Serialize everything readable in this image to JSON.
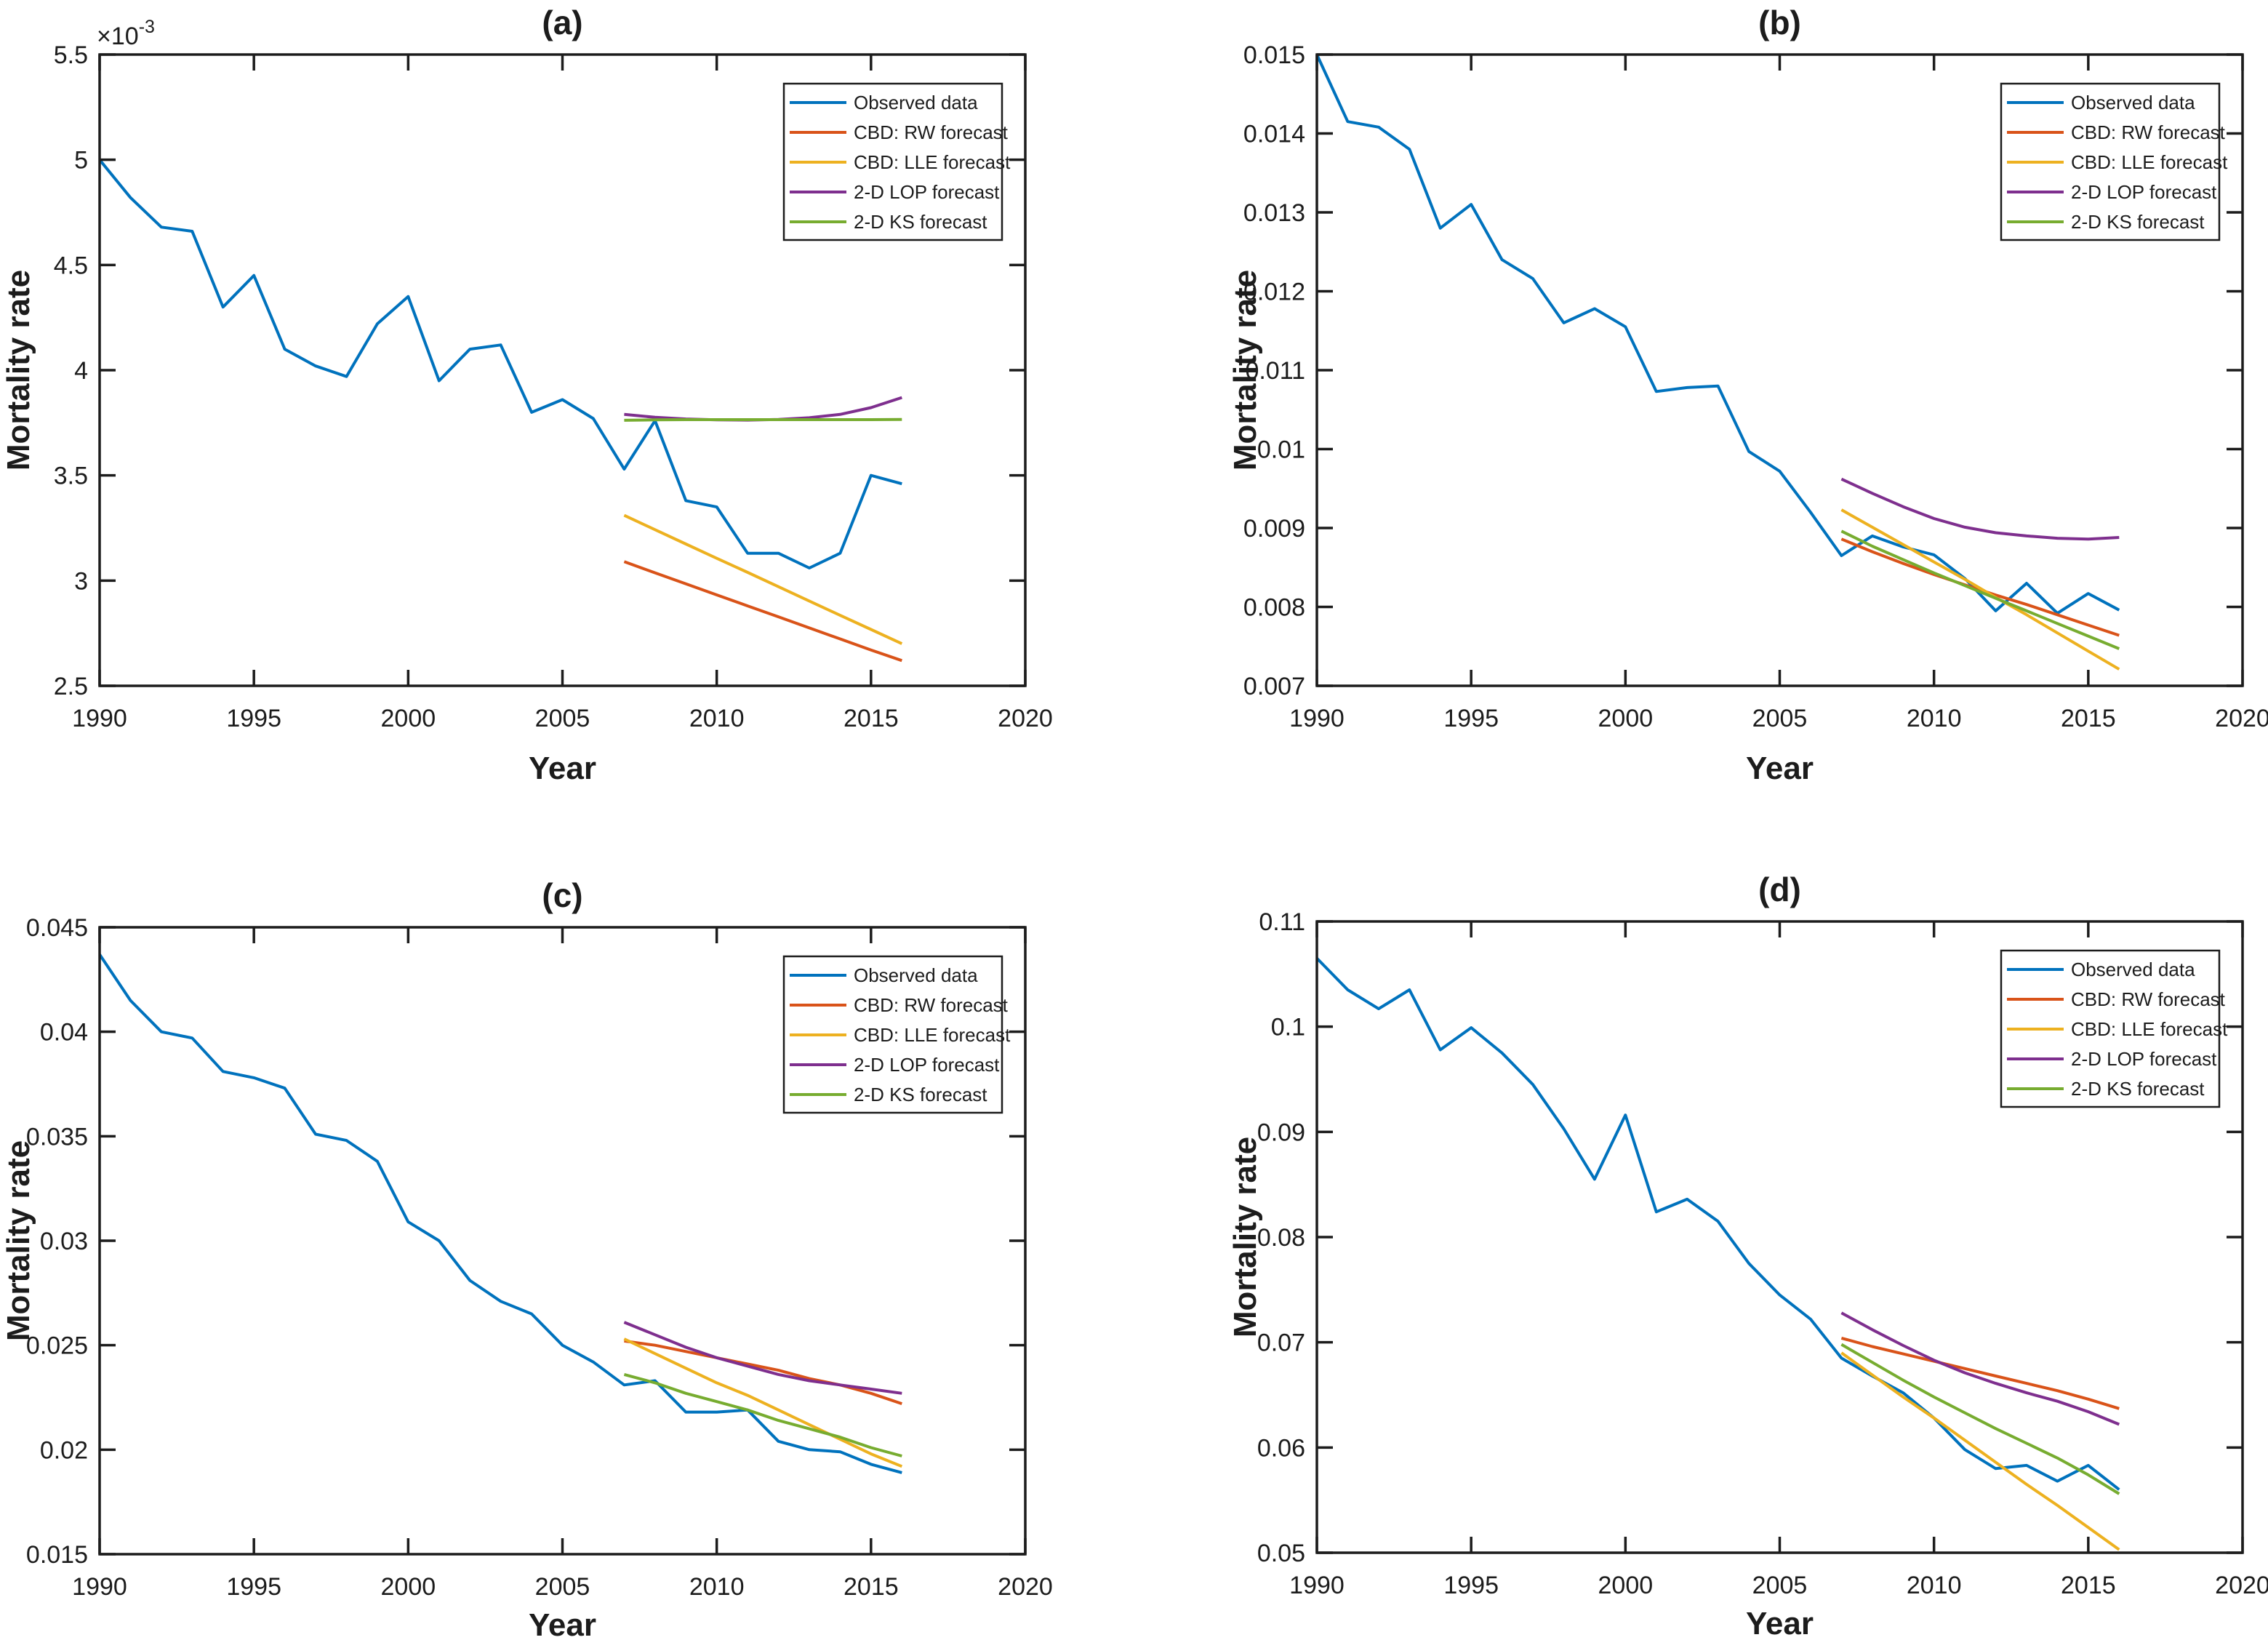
{
  "figure": {
    "background": "#ffffff",
    "axis_color": "#1c1c1c",
    "text_color": "#1c1c1c",
    "series_colors": {
      "observed": "#0072BD",
      "rw": "#D95319",
      "lle": "#EDB120",
      "lop": "#7E2F8E",
      "ks": "#77AC30"
    },
    "legend_labels": [
      "Observed data",
      "CBD: RW forecast",
      "CBD: LLE forecast",
      "2-D LOP forecast",
      "2-D KS forecast"
    ]
  },
  "chart_data": [
    {
      "type": "line",
      "title": "(a)",
      "xlabel": "Year",
      "ylabel": "Mortality rate",
      "y_exponent_base": "×10",
      "y_exponent_power": "-3",
      "grid": false,
      "legend_position": "top-right",
      "xlim": [
        1990,
        2020
      ],
      "ylim": [
        0.0025,
        0.0055
      ],
      "x_tick_values": [
        1990,
        1995,
        2000,
        2005,
        2010,
        2015,
        2020
      ],
      "x_tick_labels": [
        "1990",
        "1995",
        "2000",
        "2005",
        "2010",
        "2015",
        "2020"
      ],
      "y_tick_values": [
        0.0025,
        0.003,
        0.0035,
        0.004,
        0.0045,
        0.005,
        0.0055
      ],
      "y_tick_labels": [
        "2.5",
        "3",
        "3.5",
        "4",
        "4.5",
        "5",
        "5.5"
      ],
      "x_observed": [
        1990,
        1991,
        1992,
        1993,
        1994,
        1995,
        1996,
        1997,
        1998,
        1999,
        2000,
        2001,
        2002,
        2003,
        2004,
        2005,
        2006,
        2007,
        2008,
        2009,
        2010,
        2011,
        2012,
        2013,
        2014,
        2015,
        2016
      ],
      "x_forecast": [
        2007,
        2008,
        2009,
        2010,
        2011,
        2012,
        2013,
        2014,
        2015,
        2016
      ],
      "series": [
        {
          "key": "observed",
          "name": "Observed data",
          "x": "observed",
          "y": [
            0.005,
            0.00482,
            0.00468,
            0.00466,
            0.0043,
            0.00445,
            0.0041,
            0.00402,
            0.00397,
            0.00422,
            0.00435,
            0.00395,
            0.0041,
            0.00412,
            0.0038,
            0.00386,
            0.00377,
            0.00353,
            0.00376,
            0.00338,
            0.00335,
            0.00313,
            0.00313,
            0.00306,
            0.00313,
            0.0035,
            0.00346
          ]
        },
        {
          "key": "rw",
          "name": "CBD: RW forecast",
          "x": "forecast",
          "y": [
            0.00309,
            0.003037,
            0.002985,
            0.002932,
            0.00288,
            0.002828,
            0.002775,
            0.002723,
            0.00267,
            0.00262
          ]
        },
        {
          "key": "lle",
          "name": "CBD: LLE forecast",
          "x": "forecast",
          "y": [
            0.00331,
            0.003242,
            0.003174,
            0.003106,
            0.003039,
            0.002971,
            0.002903,
            0.002835,
            0.002768,
            0.0027
          ]
        },
        {
          "key": "lop",
          "name": "2-D LOP forecast",
          "x": "forecast",
          "y": [
            0.00379,
            0.003776,
            0.003768,
            0.003764,
            0.003763,
            0.003766,
            0.003774,
            0.00379,
            0.003822,
            0.00387
          ]
        },
        {
          "key": "ks",
          "name": "2-D KS forecast",
          "x": "forecast",
          "y": [
            0.003762,
            0.003764,
            0.003765,
            0.003765,
            0.003765,
            0.003765,
            0.003765,
            0.003765,
            0.003765,
            0.003766
          ]
        }
      ]
    },
    {
      "type": "line",
      "title": "(b)",
      "xlabel": "Year",
      "ylabel": "Mortality rate",
      "y_exponent_base": "",
      "y_exponent_power": "",
      "grid": false,
      "legend_position": "top-right",
      "xlim": [
        1990,
        2020
      ],
      "ylim": [
        0.007,
        0.015
      ],
      "x_tick_values": [
        1990,
        1995,
        2000,
        2005,
        2010,
        2015,
        2020
      ],
      "x_tick_labels": [
        "1990",
        "1995",
        "2000",
        "2005",
        "2010",
        "2015",
        "2020"
      ],
      "y_tick_values": [
        0.007,
        0.008,
        0.009,
        0.01,
        0.011,
        0.012,
        0.013,
        0.014,
        0.015
      ],
      "y_tick_labels": [
        "0.007",
        "0.008",
        "0.009",
        "0.01",
        "0.011",
        "0.012",
        "0.013",
        "0.014",
        "0.015"
      ],
      "x_observed": [
        1990,
        1991,
        1992,
        1993,
        1994,
        1995,
        1996,
        1997,
        1998,
        1999,
        2000,
        2001,
        2002,
        2003,
        2004,
        2005,
        2006,
        2007,
        2008,
        2009,
        2010,
        2011,
        2012,
        2013,
        2014,
        2015,
        2016
      ],
      "x_forecast": [
        2007,
        2008,
        2009,
        2010,
        2011,
        2012,
        2013,
        2014,
        2015,
        2016
      ],
      "series": [
        {
          "key": "observed",
          "name": "Observed data",
          "x": "observed",
          "y": [
            0.015,
            0.01415,
            0.01408,
            0.0138,
            0.0128,
            0.0131,
            0.0124,
            0.01216,
            0.0116,
            0.01178,
            0.01155,
            0.01073,
            0.01078,
            0.0108,
            0.00997,
            0.00972,
            0.0092,
            0.00865,
            0.0089,
            0.00876,
            0.00866,
            0.00836,
            0.00795,
            0.0083,
            0.00792,
            0.00817,
            0.00796
          ]
        },
        {
          "key": "rw",
          "name": "CBD: RW forecast",
          "x": "forecast",
          "y": [
            0.00886,
            0.0087,
            0.00855,
            0.00841,
            0.00828,
            0.00815,
            0.00803,
            0.0079,
            0.00777,
            0.00764
          ]
        },
        {
          "key": "lle",
          "name": "CBD: LLE forecast",
          "x": "forecast",
          "y": [
            0.00923,
            0.00901,
            0.00879,
            0.00857,
            0.00835,
            0.00812,
            0.0079,
            0.00767,
            0.00744,
            0.00721
          ]
        },
        {
          "key": "lop",
          "name": "2-D LOP forecast",
          "x": "forecast",
          "y": [
            0.00962,
            0.00944,
            0.00927,
            0.00912,
            0.00901,
            0.00894,
            0.0089,
            0.00887,
            0.00886,
            0.00888
          ]
        },
        {
          "key": "ks",
          "name": "2-D KS forecast",
          "x": "forecast",
          "y": [
            0.00896,
            0.00877,
            0.0086,
            0.00843,
            0.00827,
            0.00811,
            0.00795,
            0.00779,
            0.00763,
            0.00747
          ]
        }
      ]
    },
    {
      "type": "line",
      "title": "(c)",
      "xlabel": "Year",
      "ylabel": "Mortality rate",
      "y_exponent_base": "",
      "y_exponent_power": "",
      "grid": false,
      "legend_position": "top-right",
      "xlim": [
        1990,
        2020
      ],
      "ylim": [
        0.015,
        0.045
      ],
      "x_tick_values": [
        1990,
        1995,
        2000,
        2005,
        2010,
        2015,
        2020
      ],
      "x_tick_labels": [
        "1990",
        "1995",
        "2000",
        "2005",
        "2010",
        "2015",
        "2020"
      ],
      "y_tick_values": [
        0.015,
        0.02,
        0.025,
        0.03,
        0.035,
        0.04,
        0.045
      ],
      "y_tick_labels": [
        "0.015",
        "0.02",
        "0.025",
        "0.03",
        "0.035",
        "0.04",
        "0.045"
      ],
      "x_observed": [
        1990,
        1991,
        1992,
        1993,
        1994,
        1995,
        1996,
        1997,
        1998,
        1999,
        2000,
        2001,
        2002,
        2003,
        2004,
        2005,
        2006,
        2007,
        2008,
        2009,
        2010,
        2011,
        2012,
        2013,
        2014,
        2015,
        2016
      ],
      "x_forecast": [
        2007,
        2008,
        2009,
        2010,
        2011,
        2012,
        2013,
        2014,
        2015,
        2016
      ],
      "series": [
        {
          "key": "observed",
          "name": "Observed data",
          "x": "observed",
          "y": [
            0.0437,
            0.0415,
            0.04,
            0.0397,
            0.0381,
            0.0378,
            0.0373,
            0.0351,
            0.0348,
            0.0338,
            0.0309,
            0.03,
            0.0281,
            0.0271,
            0.0265,
            0.025,
            0.0242,
            0.0231,
            0.0233,
            0.0218,
            0.0218,
            0.0219,
            0.0204,
            0.02,
            0.0199,
            0.0193,
            0.0189
          ]
        },
        {
          "key": "rw",
          "name": "CBD: RW forecast",
          "x": "forecast",
          "y": [
            0.0252,
            0.025,
            0.0247,
            0.0244,
            0.0241,
            0.0238,
            0.0234,
            0.0231,
            0.0227,
            0.0222
          ]
        },
        {
          "key": "lle",
          "name": "CBD: LLE forecast",
          "x": "forecast",
          "y": [
            0.0253,
            0.0246,
            0.0239,
            0.0232,
            0.0226,
            0.0219,
            0.0212,
            0.0205,
            0.0198,
            0.0192
          ]
        },
        {
          "key": "lop",
          "name": "2-D LOP forecast",
          "x": "forecast",
          "y": [
            0.0261,
            0.0255,
            0.0249,
            0.0244,
            0.024,
            0.0236,
            0.0233,
            0.0231,
            0.0229,
            0.0227
          ]
        },
        {
          "key": "ks",
          "name": "2-D KS forecast",
          "x": "forecast",
          "y": [
            0.0236,
            0.0232,
            0.0227,
            0.0223,
            0.0219,
            0.0214,
            0.021,
            0.0206,
            0.0201,
            0.0197
          ]
        }
      ]
    },
    {
      "type": "line",
      "title": "(d)",
      "xlabel": "Year",
      "ylabel": "Mortality rate",
      "y_exponent_base": "",
      "y_exponent_power": "",
      "grid": false,
      "legend_position": "top-right",
      "xlim": [
        1990,
        2020
      ],
      "ylim": [
        0.05,
        0.11
      ],
      "x_tick_values": [
        1990,
        1995,
        2000,
        2005,
        2010,
        2015,
        2020
      ],
      "x_tick_labels": [
        "1990",
        "1995",
        "2000",
        "2005",
        "2010",
        "2015",
        "2020"
      ],
      "y_tick_values": [
        0.05,
        0.06,
        0.07,
        0.08,
        0.09,
        0.1,
        0.11
      ],
      "y_tick_labels": [
        "0.05",
        "0.06",
        "0.07",
        "0.08",
        "0.09",
        "0.1",
        "0.11"
      ],
      "x_observed": [
        1990,
        1991,
        1992,
        1993,
        1994,
        1995,
        1996,
        1997,
        1998,
        1999,
        2000,
        2001,
        2002,
        2003,
        2004,
        2005,
        2006,
        2007,
        2008,
        2009,
        2010,
        2011,
        2012,
        2013,
        2014,
        2015,
        2016
      ],
      "x_forecast": [
        2007,
        2008,
        2009,
        2010,
        2011,
        2012,
        2013,
        2014,
        2015,
        2016
      ],
      "series": [
        {
          "key": "observed",
          "name": "Observed data",
          "x": "observed",
          "y": [
            0.1065,
            0.1035,
            0.1017,
            0.1035,
            0.0978,
            0.0999,
            0.0975,
            0.0945,
            0.0903,
            0.0855,
            0.0916,
            0.0824,
            0.0836,
            0.0815,
            0.0775,
            0.0745,
            0.0722,
            0.0685,
            0.0668,
            0.0652,
            0.0628,
            0.0598,
            0.058,
            0.0583,
            0.0568,
            0.0583,
            0.056
          ]
        },
        {
          "key": "rw",
          "name": "CBD: RW forecast",
          "x": "forecast",
          "y": [
            0.0704,
            0.0696,
            0.0689,
            0.0682,
            0.0675,
            0.0668,
            0.0661,
            0.0654,
            0.0646,
            0.0637
          ]
        },
        {
          "key": "lle",
          "name": "CBD: LLE forecast",
          "x": "forecast",
          "y": [
            0.069,
            0.0669,
            0.0648,
            0.0628,
            0.0607,
            0.0586,
            0.0565,
            0.0545,
            0.0524,
            0.0503
          ]
        },
        {
          "key": "lop",
          "name": "2-D LOP forecast",
          "x": "forecast",
          "y": [
            0.0728,
            0.0712,
            0.0697,
            0.0683,
            0.0671,
            0.0661,
            0.0652,
            0.0644,
            0.0634,
            0.0622
          ]
        },
        {
          "key": "ks",
          "name": "2-D KS forecast",
          "x": "forecast",
          "y": [
            0.0698,
            0.0681,
            0.0664,
            0.0648,
            0.0633,
            0.0618,
            0.0604,
            0.059,
            0.0574,
            0.0556
          ]
        }
      ]
    }
  ]
}
